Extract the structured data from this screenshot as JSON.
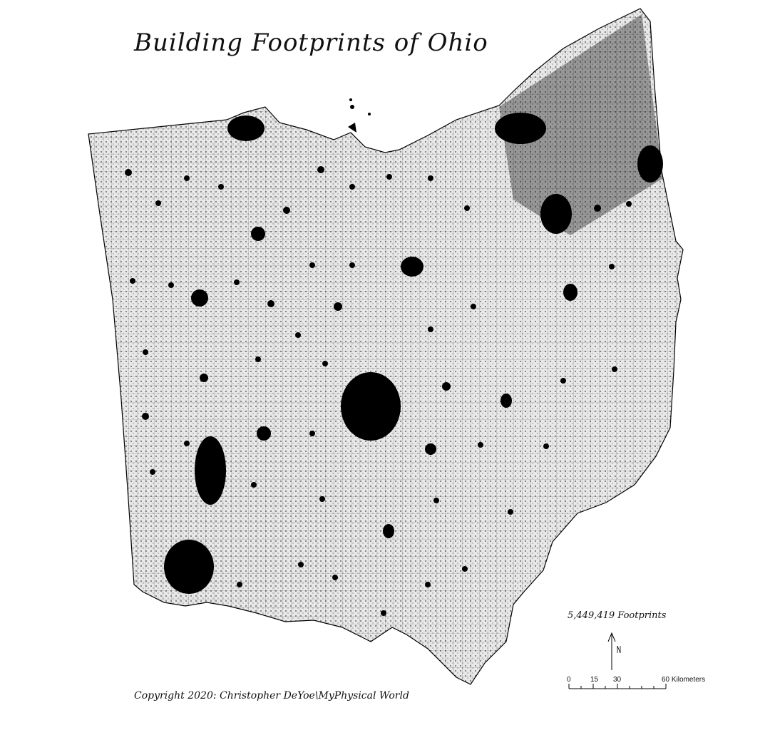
{
  "map": {
    "title": "Building Footprints of Ohio",
    "footprint_count": "5,449,419 Footprints",
    "copyright": "Copyright 2020: Christopher DeYoe\\MyPhysical World",
    "north_arrow_label": "",
    "scale_bar": {
      "ticks": [
        "0",
        "15",
        "30",
        "60 Kilometers"
      ]
    },
    "colors": {
      "background": "#ffffff",
      "land": "#f2f2f2",
      "footprints": "#000000"
    }
  }
}
